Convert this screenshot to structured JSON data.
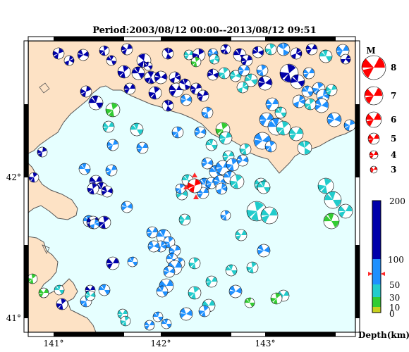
{
  "title": "Period:2003/08/12 00:00--2013/08/12 09:51",
  "colors": {
    "sea": "#e6ffff",
    "land": "#fde2c5",
    "coast": "#555555",
    "shallow": "#33cc33",
    "d30": "#c7d11d",
    "d50": "#22cccc",
    "d100": "#1e90ff",
    "deep": "#0000aa",
    "target": "#ff0000"
  },
  "axes": {
    "lon_ticks": [
      "141°",
      "142°",
      "143°"
    ],
    "lat_ticks": [
      "42°",
      "41°"
    ]
  },
  "magnitude_legend": {
    "title": "M",
    "items": [
      "8",
      "7",
      "6",
      "5",
      "4",
      "3"
    ]
  },
  "depth_colorbar": {
    "labels": [
      "200",
      "100",
      "50",
      "30",
      "10",
      "0"
    ],
    "unit": "Depth(km)"
  }
}
